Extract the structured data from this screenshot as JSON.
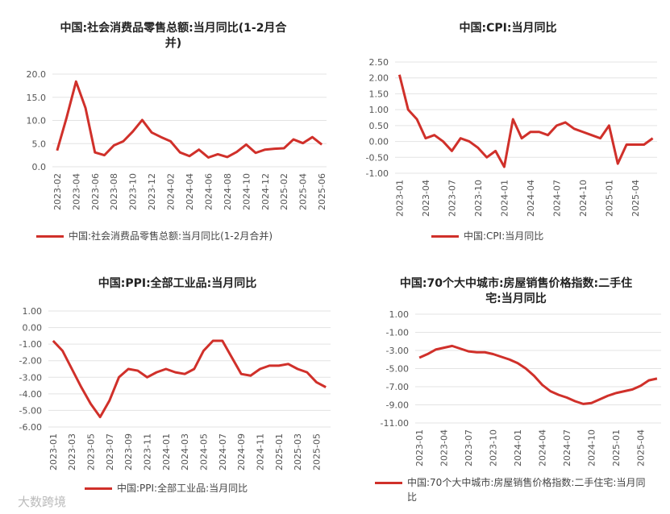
{
  "watermark": "大数跨境",
  "chart_data": [
    {
      "type": "line",
      "title": "中国:社会消费品零售总额:当月同比(1-2月合并)",
      "categories": [
        "2023-02",
        null,
        "2023-04",
        null,
        "2023-06",
        null,
        "2023-08",
        null,
        "2023-10",
        null,
        "2023-12",
        null,
        "2024-02",
        null,
        "2024-04",
        null,
        "2024-06",
        null,
        "2024-08",
        null,
        "2024-10",
        null,
        "2024-12",
        null,
        "2025-02",
        null,
        "2025-04",
        null,
        "2025-06"
      ],
      "series": [
        {
          "name": "中国:社会消费品零售总额:当月同比(1-2月合并)",
          "color": "#d0302a",
          "values": [
            3.5,
            10.6,
            18.4,
            12.7,
            3.1,
            2.5,
            4.6,
            5.5,
            7.6,
            10.1,
            7.4,
            6.4,
            5.5,
            3.1,
            2.3,
            3.7,
            2.0,
            2.7,
            2.1,
            3.2,
            4.8,
            3.0,
            3.7,
            3.9,
            4.0,
            5.9,
            5.1,
            6.4,
            4.8
          ]
        }
      ],
      "ylim": [
        0,
        20
      ],
      "yticks": [
        {
          "value": 0,
          "label": "0.0"
        },
        {
          "value": 5,
          "label": "5.0"
        },
        {
          "value": 10,
          "label": "10.0"
        },
        {
          "value": 15,
          "label": "15.0"
        },
        {
          "value": 20,
          "label": "20.0"
        }
      ],
      "grid": true
    },
    {
      "type": "line",
      "title": "中国:CPI:当月同比",
      "categories": [
        "2023-01",
        null,
        null,
        "2023-04",
        null,
        null,
        "2023-07",
        null,
        null,
        "2023-10",
        null,
        null,
        "2024-01",
        null,
        null,
        "2024-04",
        null,
        null,
        "2024-07",
        null,
        null,
        "2024-10",
        null,
        null,
        "2025-01",
        null,
        null,
        "2025-04",
        null,
        null
      ],
      "series": [
        {
          "name": "中国:CPI:当月同比",
          "color": "#d0302a",
          "values": [
            2.1,
            1.0,
            0.7,
            0.1,
            0.2,
            0.0,
            -0.3,
            0.1,
            0.0,
            -0.2,
            -0.5,
            -0.3,
            -0.8,
            0.7,
            0.1,
            0.3,
            0.3,
            0.2,
            0.5,
            0.6,
            0.4,
            0.3,
            0.2,
            0.1,
            0.5,
            -0.7,
            -0.1,
            -0.1,
            -0.1,
            0.1
          ]
        }
      ],
      "ylim": [
        -1,
        2.5
      ],
      "yticks": [
        {
          "value": -1,
          "label": "-1.00"
        },
        {
          "value": -0.5,
          "label": "-0.50"
        },
        {
          "value": 0,
          "label": "0.00"
        },
        {
          "value": 0.5,
          "label": "0.50"
        },
        {
          "value": 1,
          "label": "1.00"
        },
        {
          "value": 1.5,
          "label": "1.50"
        },
        {
          "value": 2,
          "label": "2.00"
        },
        {
          "value": 2.5,
          "label": "2.50"
        }
      ],
      "grid": true
    },
    {
      "type": "line",
      "title": "中国:PPI:全部工业品:当月同比",
      "categories": [
        "2023-01",
        null,
        "2023-03",
        null,
        "2023-05",
        null,
        "2023-07",
        null,
        "2023-09",
        null,
        "2023-11",
        null,
        "2024-01",
        null,
        "2024-03",
        null,
        "2024-05",
        null,
        "2024-07",
        null,
        "2024-09",
        null,
        "2024-11",
        null,
        "2025-01",
        null,
        "2025-03",
        null,
        "2025-05",
        null
      ],
      "series": [
        {
          "name": "中国:PPI:全部工业品:当月同比",
          "color": "#d0302a",
          "values": [
            -0.8,
            -1.4,
            -2.5,
            -3.6,
            -4.6,
            -5.4,
            -4.4,
            -3.0,
            -2.5,
            -2.6,
            -3.0,
            -2.7,
            -2.5,
            -2.7,
            -2.8,
            -2.5,
            -1.4,
            -0.8,
            -0.8,
            -1.8,
            -2.8,
            -2.9,
            -2.5,
            -2.3,
            -2.3,
            -2.2,
            -2.5,
            -2.7,
            -3.3,
            -3.6
          ]
        }
      ],
      "ylim": [
        -6,
        1
      ],
      "yticks": [
        {
          "value": -6,
          "label": "-6.00"
        },
        {
          "value": -5,
          "label": "-5.00"
        },
        {
          "value": -4,
          "label": "-4.00"
        },
        {
          "value": -3,
          "label": "-3.00"
        },
        {
          "value": -2,
          "label": "-2.00"
        },
        {
          "value": -1,
          "label": "-1.00"
        },
        {
          "value": 0,
          "label": "0.00"
        },
        {
          "value": 1,
          "label": "1.00"
        }
      ],
      "grid": true
    },
    {
      "type": "line",
      "title": "中国:70个大中城市:房屋销售价格指数:二手住宅:当月同比",
      "categories": [
        "2023-01",
        null,
        null,
        "2023-04",
        null,
        null,
        "2023-07",
        null,
        null,
        "2023-10",
        null,
        null,
        "2024-01",
        null,
        null,
        "2024-04",
        null,
        null,
        "2024-07",
        null,
        null,
        "2024-10",
        null,
        null,
        "2025-01",
        null,
        null,
        "2025-04",
        null,
        null
      ],
      "series": [
        {
          "name": "中国:70个大中城市:房屋销售价格指数:二手住宅:当月同比",
          "color": "#d0302a",
          "values": [
            -3.8,
            -3.4,
            -2.9,
            -2.7,
            -2.5,
            -2.8,
            -3.1,
            -3.2,
            -3.2,
            -3.4,
            -3.7,
            -4.0,
            -4.4,
            -5.0,
            -5.8,
            -6.8,
            -7.5,
            -7.9,
            -8.2,
            -8.6,
            -8.9,
            -8.8,
            -8.4,
            -8.0,
            -7.7,
            -7.5,
            -7.3,
            -6.9,
            -6.3,
            -6.1
          ]
        }
      ],
      "ylim": [
        -11,
        1
      ],
      "yticks": [
        {
          "value": -11,
          "label": "-11.00"
        },
        {
          "value": -9,
          "label": "-9.00"
        },
        {
          "value": -7,
          "label": "-7.00"
        },
        {
          "value": -5,
          "label": "-5.00"
        },
        {
          "value": -3,
          "label": "-3.00"
        },
        {
          "value": -1,
          "label": "-1.00"
        },
        {
          "value": 1,
          "label": "1.00"
        }
      ],
      "grid": true
    }
  ]
}
